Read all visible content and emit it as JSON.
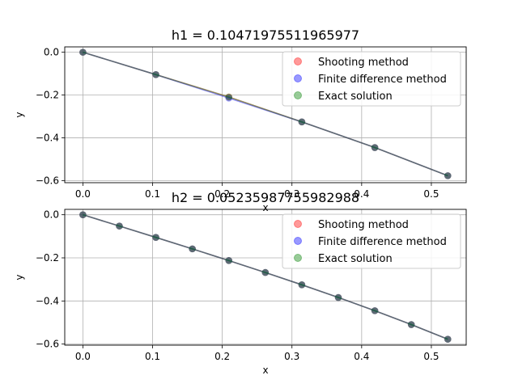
{
  "colors": {
    "shooting": "#ff0000",
    "finite_difference": "#0000ff",
    "exact": "#008000",
    "line": "#555566",
    "points": "#2f3f4a",
    "grid": "#b0b0b0"
  },
  "chart_data": [
    {
      "type": "line",
      "title": "h1 = 0.10471975511965977",
      "xlabel": "x",
      "ylabel": "y",
      "xlim": [
        -0.026,
        0.55
      ],
      "ylim": [
        -0.61,
        0.025
      ],
      "xticks": [
        0.0,
        0.1,
        0.2,
        0.3,
        0.4,
        0.5
      ],
      "xtick_labels": [
        "0.0",
        "0.1",
        "0.2",
        "0.3",
        "0.4",
        "0.5"
      ],
      "yticks": [
        0.0,
        -0.2,
        -0.4,
        -0.6
      ],
      "ytick_labels": [
        "0.0",
        "−0.2",
        "−0.4",
        "−0.6"
      ],
      "grid": true,
      "legend_position": "upper-right",
      "x": [
        0.0,
        0.10472,
        0.20944,
        0.31416,
        0.41888,
        0.5236
      ],
      "series": [
        {
          "name": "Shooting method",
          "kind": "scatter",
          "color": "#ff0000",
          "y": [
            0.0,
            -0.1047,
            -0.2094,
            -0.3258,
            -0.4457,
            -0.5774
          ]
        },
        {
          "name": "Finite difference method",
          "kind": "scatter",
          "color": "#0000ff",
          "y": [
            0.0,
            -0.1047,
            -0.2144,
            -0.3258,
            -0.4457,
            -0.5774
          ]
        },
        {
          "name": "Exact solution",
          "kind": "scatter",
          "color": "#008000",
          "y": [
            0.0,
            -0.1047,
            -0.2094,
            -0.3258,
            -0.4457,
            -0.5774
          ]
        }
      ]
    },
    {
      "type": "line",
      "title": "h2 = 0.05235987755982988",
      "xlabel": "x",
      "ylabel": "y",
      "xlim": [
        -0.026,
        0.55
      ],
      "ylim": [
        -0.605,
        0.025
      ],
      "xticks": [
        0.0,
        0.1,
        0.2,
        0.3,
        0.4,
        0.5
      ],
      "xtick_labels": [
        "0.0",
        "0.1",
        "0.2",
        "0.3",
        "0.4",
        "0.5"
      ],
      "yticks": [
        0.0,
        -0.2,
        -0.4,
        -0.6
      ],
      "ytick_labels": [
        "0.0",
        "−0.2",
        "−0.4",
        "−0.6"
      ],
      "grid": true,
      "legend_position": "upper-right",
      "x": [
        0.0,
        0.05236,
        0.10472,
        0.15708,
        0.20944,
        0.2618,
        0.31416,
        0.36652,
        0.41888,
        0.47124,
        0.5236
      ],
      "series": [
        {
          "name": "Shooting method",
          "kind": "scatter",
          "color": "#ff0000",
          "y": [
            0.0,
            -0.0524,
            -0.1051,
            -0.1583,
            -0.2126,
            -0.2679,
            -0.3249,
            -0.3839,
            -0.4452,
            -0.5095,
            -0.5774
          ]
        },
        {
          "name": "Finite difference method",
          "kind": "scatter",
          "color": "#0000ff",
          "y": [
            0.0,
            -0.0524,
            -0.1051,
            -0.1583,
            -0.2126,
            -0.2679,
            -0.3249,
            -0.3839,
            -0.4452,
            -0.5095,
            -0.5774
          ]
        },
        {
          "name": "Exact solution",
          "kind": "scatter",
          "color": "#008000",
          "y": [
            0.0,
            -0.0524,
            -0.1051,
            -0.1583,
            -0.2126,
            -0.2679,
            -0.3249,
            -0.3839,
            -0.4452,
            -0.5095,
            -0.5774
          ]
        }
      ]
    }
  ]
}
